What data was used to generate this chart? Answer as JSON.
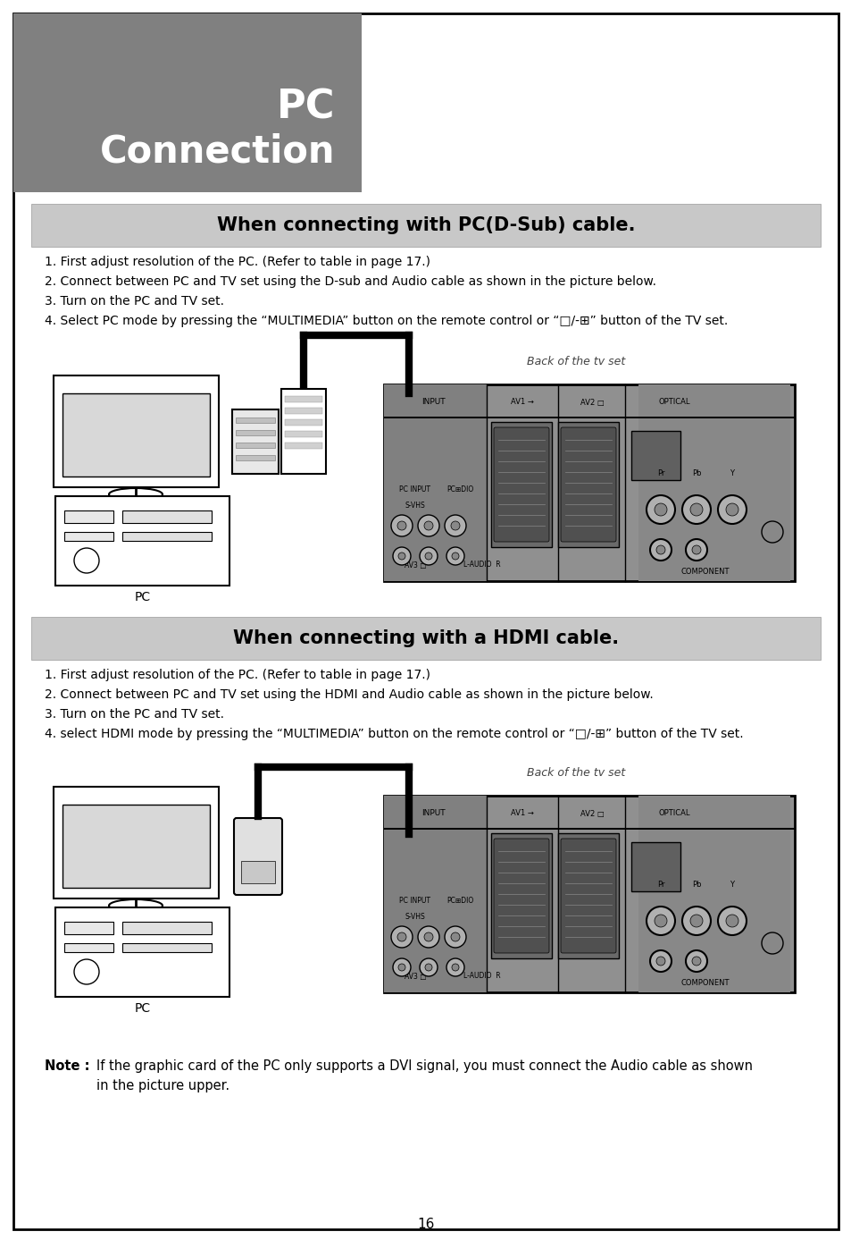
{
  "page_bg": "#ffffff",
  "header_bg": "#808080",
  "header_text_color": "#ffffff",
  "section_bg": "#c8c8c8",
  "section1_title": "When connecting with PC(D-Sub) cable.",
  "section1_steps": [
    "1. First adjust resolution of the PC. (Refer to table in page 17.)",
    "2. Connect between PC and TV set using the D-sub and Audio cable as shown in the picture below.",
    "3. Turn on the PC and TV set.",
    "4. Select PC mode by pressing the “MULTIMEDIA” button on the remote control or “□/-⊞” button of the TV set."
  ],
  "section2_title": "When connecting with a HDMI cable.",
  "section2_steps": [
    "1. First adjust resolution of the PC. (Refer to table in page 17.)",
    "2. Connect between PC and TV set using the HDMI and Audio cable as shown in the picture below.",
    "3. Turn on the PC and TV set.",
    "4. select HDMI mode by pressing the “MULTIMEDIA” button on the remote control or “□/-⊞” button of the TV set."
  ],
  "note_bold": "Note : ",
  "note_text": " If the graphic card of the PC only supports a DVI signal, you must connect the Audio cable as shown\n         in the picture upper.",
  "back_label": "Back of the tv set",
  "pc_label": "PC",
  "page_number": "16",
  "tv_panel_bg": "#909090",
  "tv_panel_dark": "#707070",
  "tv_panel_darker": "#606060",
  "connector_bg": "#b8b8b8",
  "scart_bg": "#7a7a7a",
  "scart_inner": "#585858"
}
